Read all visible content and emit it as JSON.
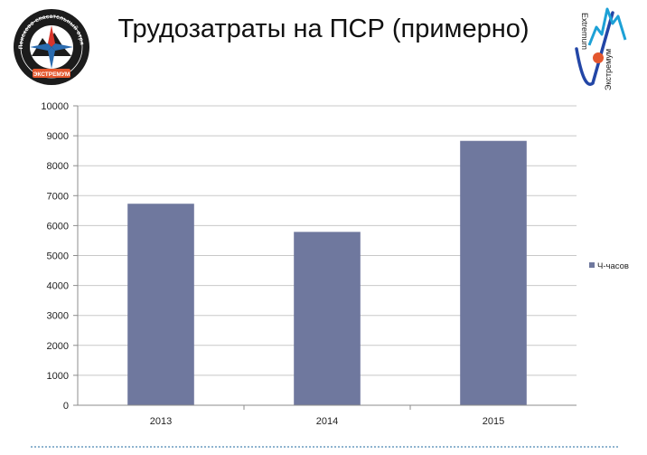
{
  "header": {
    "title": "Трудозатраты на ПСР (примерно)",
    "left_logo": {
      "icon": "rescue-team-emblem-icon",
      "text_top": "Поисково-спасательный отряд",
      "text_bottom": "ЭКСТРЕМУМ"
    },
    "right_logo": {
      "icon": "extremum-logo-icon",
      "text_latin": "Extremum",
      "text_cyrillic": "Экстремум"
    }
  },
  "colors": {
    "bar": "#6f789e",
    "grid": "#c8c8c8",
    "axis": "#8c8c8c",
    "footer": "#8fb4cf"
  },
  "chart_data": {
    "type": "bar",
    "categories": [
      "2013",
      "2014",
      "2015"
    ],
    "series": [
      {
        "name": "Ч-часов",
        "values": [
          6730,
          5790,
          8830
        ]
      }
    ],
    "title": "",
    "xlabel": "",
    "ylabel": "",
    "ylim": [
      0,
      10000
    ],
    "yticks": [
      "0",
      "1000",
      "2000",
      "3000",
      "4000",
      "5000",
      "6000",
      "7000",
      "8000",
      "9000",
      "10000"
    ],
    "grid": true,
    "legend_position": "right"
  }
}
